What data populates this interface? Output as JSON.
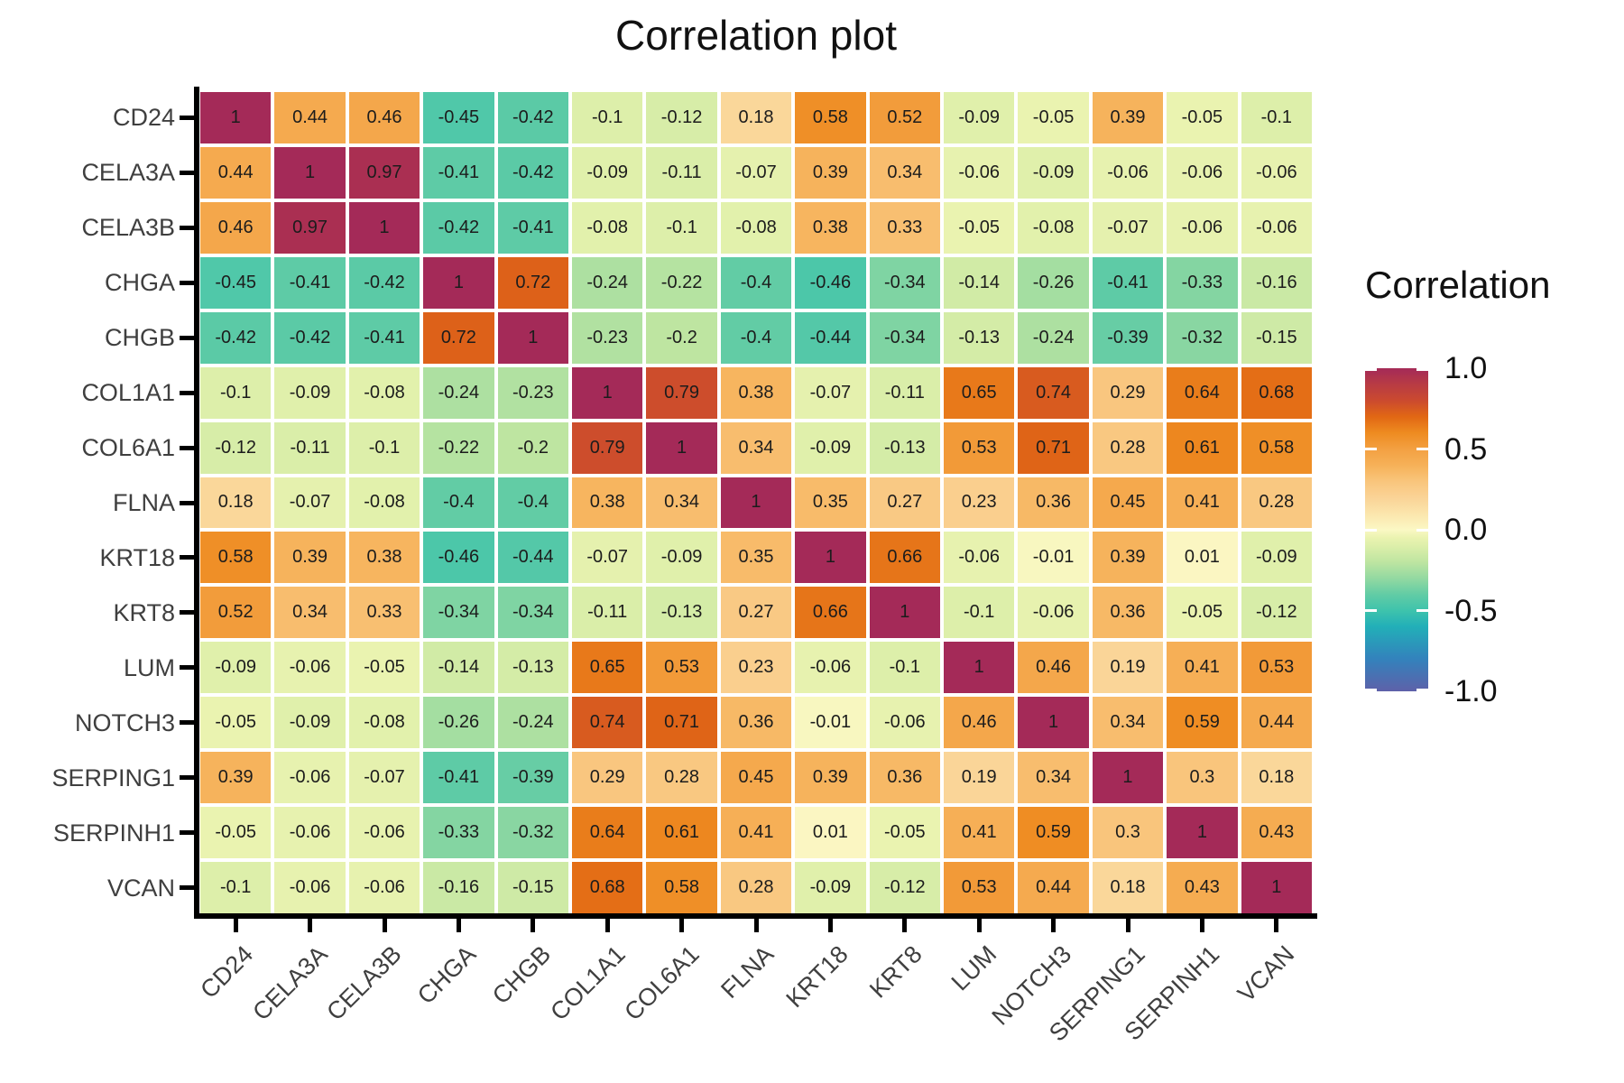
{
  "title": "Correlation plot",
  "legend": {
    "title": "Correlation",
    "ticks": [
      "1.0",
      "0.5",
      "0.0",
      "-0.5",
      "-1.0"
    ]
  },
  "chart_data": {
    "type": "heatmap",
    "title": "Correlation plot",
    "categories": [
      "CD24",
      "CELA3A",
      "CELA3B",
      "CHGA",
      "CHGB",
      "COL1A1",
      "COL6A1",
      "FLNA",
      "KRT18",
      "KRT8",
      "LUM",
      "NOTCH3",
      "SERPING1",
      "SERPINH1",
      "VCAN"
    ],
    "matrix": [
      [
        1,
        0.44,
        0.46,
        -0.45,
        -0.42,
        -0.1,
        -0.12,
        0.18,
        0.58,
        0.52,
        -0.09,
        -0.05,
        0.39,
        -0.05,
        -0.1
      ],
      [
        0.44,
        1,
        0.97,
        -0.41,
        -0.42,
        -0.09,
        -0.11,
        -0.07,
        0.39,
        0.34,
        -0.06,
        -0.09,
        -0.06,
        -0.06,
        -0.06
      ],
      [
        0.46,
        0.97,
        1,
        -0.42,
        -0.41,
        -0.08,
        -0.1,
        -0.08,
        0.38,
        0.33,
        -0.05,
        -0.08,
        -0.07,
        -0.06,
        -0.06
      ],
      [
        -0.45,
        -0.41,
        -0.42,
        1,
        0.72,
        -0.24,
        -0.22,
        -0.4,
        -0.46,
        -0.34,
        -0.14,
        -0.26,
        -0.41,
        -0.33,
        -0.16
      ],
      [
        -0.42,
        -0.42,
        -0.41,
        0.72,
        1,
        -0.23,
        -0.2,
        -0.4,
        -0.44,
        -0.34,
        -0.13,
        -0.24,
        -0.39,
        -0.32,
        -0.15
      ],
      [
        -0.1,
        -0.09,
        -0.08,
        -0.24,
        -0.23,
        1,
        0.79,
        0.38,
        -0.07,
        -0.11,
        0.65,
        0.74,
        0.29,
        0.64,
        0.68
      ],
      [
        -0.12,
        -0.11,
        -0.1,
        -0.22,
        -0.2,
        0.79,
        1,
        0.34,
        -0.09,
        -0.13,
        0.53,
        0.71,
        0.28,
        0.61,
        0.58
      ],
      [
        0.18,
        -0.07,
        -0.08,
        -0.4,
        -0.4,
        0.38,
        0.34,
        1,
        0.35,
        0.27,
        0.23,
        0.36,
        0.45,
        0.41,
        0.28
      ],
      [
        0.58,
        0.39,
        0.38,
        -0.46,
        -0.44,
        -0.07,
        -0.09,
        0.35,
        1,
        0.66,
        -0.06,
        -0.01,
        0.39,
        0.01,
        -0.09
      ],
      [
        0.52,
        0.34,
        0.33,
        -0.34,
        -0.34,
        -0.11,
        -0.13,
        0.27,
        0.66,
        1,
        -0.1,
        -0.06,
        0.36,
        -0.05,
        -0.12
      ],
      [
        -0.09,
        -0.06,
        -0.05,
        -0.14,
        -0.13,
        0.65,
        0.53,
        0.23,
        -0.06,
        -0.1,
        1,
        0.46,
        0.19,
        0.41,
        0.53
      ],
      [
        -0.05,
        -0.09,
        -0.08,
        -0.26,
        -0.24,
        0.74,
        0.71,
        0.36,
        -0.01,
        -0.06,
        0.46,
        1,
        0.34,
        0.59,
        0.44
      ],
      [
        0.39,
        -0.06,
        -0.07,
        -0.41,
        -0.39,
        0.29,
        0.28,
        0.45,
        0.39,
        0.36,
        0.19,
        0.34,
        1,
        0.3,
        0.18
      ],
      [
        -0.05,
        -0.06,
        -0.06,
        -0.33,
        -0.32,
        0.64,
        0.61,
        0.41,
        0.01,
        -0.05,
        0.41,
        0.59,
        0.3,
        1,
        0.43
      ],
      [
        -0.1,
        -0.06,
        -0.06,
        -0.16,
        -0.15,
        0.68,
        0.58,
        0.28,
        -0.09,
        -0.12,
        0.53,
        0.44,
        0.18,
        0.43,
        1
      ]
    ],
    "value_range": [
      -1,
      1
    ],
    "legend_title": "Correlation",
    "legend_ticks": [
      1.0,
      0.5,
      0.0,
      -0.5,
      -1.0
    ],
    "grid": false,
    "legend_position": "right",
    "palette_stops": [
      [
        -1.0,
        "#5E61A9"
      ],
      [
        -0.8,
        "#3382BC"
      ],
      [
        -0.6,
        "#22AFB8"
      ],
      [
        -0.5,
        "#3EC3AC"
      ],
      [
        -0.4,
        "#62CCA5"
      ],
      [
        -0.3,
        "#93D9A1"
      ],
      [
        -0.2,
        "#BEE5A1"
      ],
      [
        -0.1,
        "#DDEFAA"
      ],
      [
        -0.05,
        "#EAF3B0"
      ],
      [
        0.0,
        "#FBF8C4"
      ],
      [
        0.1,
        "#FBE5AC"
      ],
      [
        0.2,
        "#FAD396"
      ],
      [
        0.3,
        "#F9C57C"
      ],
      [
        0.4,
        "#F6B158"
      ],
      [
        0.5,
        "#F3A042"
      ],
      [
        0.6,
        "#EE8B20"
      ],
      [
        0.7,
        "#E16714"
      ],
      [
        0.8,
        "#CB4A2F"
      ],
      [
        0.9,
        "#B83B44"
      ],
      [
        1.0,
        "#A42A58"
      ]
    ]
  }
}
